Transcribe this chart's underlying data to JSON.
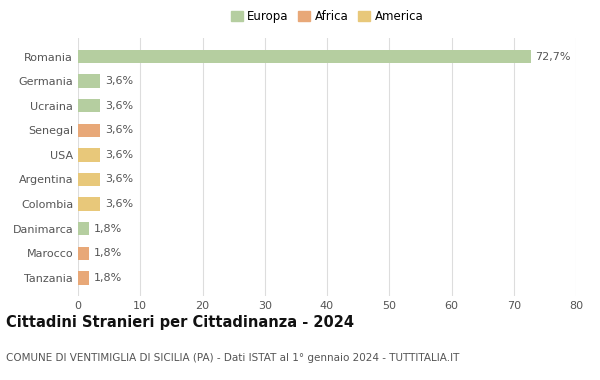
{
  "countries": [
    "Romania",
    "Germania",
    "Ucraina",
    "Senegal",
    "USA",
    "Argentina",
    "Colombia",
    "Danimarca",
    "Marocco",
    "Tanzania"
  ],
  "values": [
    72.7,
    3.6,
    3.6,
    3.6,
    3.6,
    3.6,
    3.6,
    1.8,
    1.8,
    1.8
  ],
  "labels": [
    "72,7%",
    "3,6%",
    "3,6%",
    "3,6%",
    "3,6%",
    "3,6%",
    "3,6%",
    "1,8%",
    "1,8%",
    "1,8%"
  ],
  "colors": [
    "#b5ceA0",
    "#b5cea0",
    "#b5cea0",
    "#e8a878",
    "#e8c87a",
    "#e8c87a",
    "#e8c87a",
    "#b5cea0",
    "#e8a878",
    "#e8a878"
  ],
  "legend_labels": [
    "Europa",
    "Africa",
    "America"
  ],
  "legend_colors": [
    "#b5cea0",
    "#e8a878",
    "#e8c87a"
  ],
  "title": "Cittadini Stranieri per Cittadinanza - 2024",
  "subtitle": "COMUNE DI VENTIMIGLIA DI SICILIA (PA) - Dati ISTAT al 1° gennaio 2024 - TUTTITALIA.IT",
  "xlim": [
    0,
    80
  ],
  "xticks": [
    0,
    10,
    20,
    30,
    40,
    50,
    60,
    70,
    80
  ],
  "background_color": "#ffffff",
  "grid_color": "#dddddd",
  "bar_height": 0.55,
  "title_fontsize": 10.5,
  "subtitle_fontsize": 7.5,
  "label_fontsize": 8,
  "tick_fontsize": 8,
  "legend_fontsize": 8.5
}
